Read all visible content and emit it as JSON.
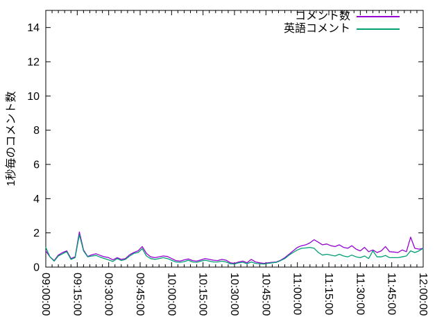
{
  "chart_data": {
    "type": "line",
    "title": "",
    "xlabel": "",
    "ylabel": "1秒毎のコメント数",
    "legend_position": "top-right-inside",
    "grid": false,
    "ylim": [
      0,
      15
    ],
    "xlim_minutes": [
      0,
      180
    ],
    "y_ticks": [
      0,
      2,
      4,
      6,
      8,
      10,
      12,
      14
    ],
    "x_tick_minutes": [
      0,
      15,
      30,
      45,
      60,
      75,
      90,
      105,
      120,
      135,
      150,
      165,
      180
    ],
    "x_tick_labels": [
      "09:00:00",
      "09:15:00",
      "09:30:00",
      "09:45:00",
      "10:00:00",
      "10:15:00",
      "10:30:00",
      "10:45:00",
      "11:00:00",
      "11:15:00",
      "11:30:00",
      "11:45:00",
      "12:00:00"
    ],
    "minor_x_step_minutes": 3,
    "axis_color": "#000000",
    "x_minutes": [
      0,
      2,
      4,
      6,
      8,
      10,
      12,
      14,
      16,
      18,
      20,
      22,
      24,
      26,
      28,
      30,
      32,
      34,
      36,
      38,
      40,
      42,
      44,
      46,
      48,
      50,
      52,
      54,
      56,
      58,
      60,
      62,
      64,
      66,
      68,
      70,
      72,
      74,
      76,
      78,
      80,
      82,
      84,
      86,
      88,
      90,
      92,
      94,
      96,
      98,
      100,
      102,
      104,
      106,
      108,
      110,
      112,
      114,
      116,
      118,
      120,
      122,
      124,
      126,
      128,
      130,
      132,
      134,
      136,
      138,
      140,
      142,
      144,
      146,
      148,
      150,
      152,
      154,
      156,
      158,
      160,
      162,
      164,
      166,
      168,
      170,
      172,
      174,
      176,
      178,
      180
    ],
    "series": [
      {
        "name": "コメント数",
        "color": "#9400d3",
        "values": [
          0.95,
          0.6,
          0.38,
          0.7,
          0.85,
          0.95,
          0.5,
          0.6,
          2.05,
          1.0,
          0.62,
          0.72,
          0.78,
          0.68,
          0.6,
          0.55,
          0.42,
          0.55,
          0.45,
          0.5,
          0.72,
          0.85,
          0.95,
          1.2,
          0.8,
          0.6,
          0.55,
          0.6,
          0.65,
          0.62,
          0.5,
          0.38,
          0.35,
          0.42,
          0.48,
          0.38,
          0.35,
          0.42,
          0.5,
          0.45,
          0.4,
          0.38,
          0.45,
          0.4,
          0.25,
          0.22,
          0.3,
          0.35,
          0.25,
          0.45,
          0.3,
          0.25,
          0.22,
          0.25,
          0.28,
          0.3,
          0.4,
          0.55,
          0.75,
          0.95,
          1.15,
          1.25,
          1.3,
          1.42,
          1.6,
          1.45,
          1.3,
          1.35,
          1.25,
          1.2,
          1.3,
          1.15,
          1.1,
          1.25,
          1.05,
          0.95,
          1.15,
          0.9,
          1.0,
          0.85,
          0.95,
          1.2,
          0.9,
          0.88,
          0.85,
          1.0,
          0.9,
          1.75,
          1.1,
          1.05,
          1.1
        ]
      },
      {
        "name": "英語コメント",
        "color": "#009e73",
        "values": [
          1.15,
          0.6,
          0.35,
          0.65,
          0.78,
          0.9,
          0.45,
          0.55,
          1.9,
          0.95,
          0.6,
          0.65,
          0.68,
          0.58,
          0.5,
          0.42,
          0.33,
          0.5,
          0.38,
          0.45,
          0.65,
          0.8,
          0.85,
          1.08,
          0.65,
          0.5,
          0.45,
          0.5,
          0.55,
          0.5,
          0.4,
          0.3,
          0.28,
          0.32,
          0.4,
          0.3,
          0.28,
          0.35,
          0.4,
          0.35,
          0.3,
          0.3,
          0.35,
          0.3,
          0.2,
          0.18,
          0.25,
          0.28,
          0.2,
          0.3,
          0.22,
          0.2,
          0.18,
          0.22,
          0.25,
          0.28,
          0.38,
          0.5,
          0.7,
          0.85,
          1.0,
          1.1,
          1.12,
          1.15,
          1.1,
          0.85,
          0.7,
          0.75,
          0.7,
          0.65,
          0.75,
          0.65,
          0.6,
          0.7,
          0.6,
          0.55,
          0.65,
          0.5,
          0.95,
          0.6,
          0.6,
          0.68,
          0.55,
          0.55,
          0.55,
          0.6,
          0.65,
          0.95,
          0.85,
          0.95,
          1.1
        ]
      }
    ]
  }
}
